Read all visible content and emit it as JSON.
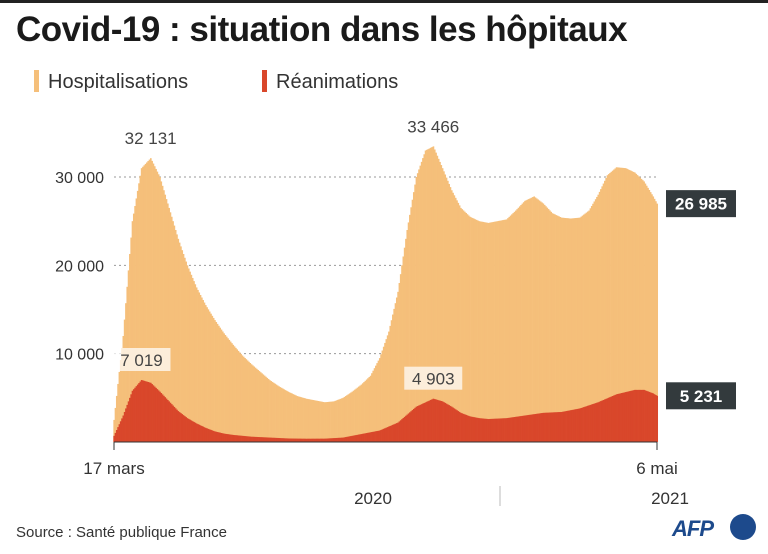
{
  "title": "Covid-19 : situation dans les hôpitaux",
  "legend": [
    {
      "label": "Hospitalisations",
      "color": "#f5bf7a"
    },
    {
      "label": "Réanimations",
      "color": "#d9472b"
    }
  ],
  "source": "Source : Santé publique France",
  "logo": "AFP",
  "chart_data": {
    "type": "bar",
    "x_start": "2020-03-17",
    "x_end": "2021-05-06",
    "ylim": [
      0,
      36000
    ],
    "yticks": [
      {
        "value": 10000,
        "label": "10 000"
      },
      {
        "value": 20000,
        "label": "20 000"
      },
      {
        "value": 30000,
        "label": "30 000"
      }
    ],
    "grid": "dotted horizontal",
    "x_labels": {
      "start": "17 mars",
      "end": "6 mai",
      "year1": "2020",
      "year2": "2021"
    },
    "series": [
      {
        "name": "Hospitalisations",
        "color": "#f5bf7a",
        "points": [
          [
            "2020-03-17",
            2500
          ],
          [
            "2020-03-24",
            12000
          ],
          [
            "2020-03-31",
            25000
          ],
          [
            "2020-04-07",
            31000
          ],
          [
            "2020-04-14",
            32131
          ],
          [
            "2020-04-21",
            30000
          ],
          [
            "2020-04-28",
            26500
          ],
          [
            "2020-05-05",
            23000
          ],
          [
            "2020-05-12",
            20000
          ],
          [
            "2020-05-19",
            17500
          ],
          [
            "2020-05-26",
            15500
          ],
          [
            "2020-06-02",
            13800
          ],
          [
            "2020-06-09",
            12300
          ],
          [
            "2020-06-16",
            11000
          ],
          [
            "2020-06-23",
            9800
          ],
          [
            "2020-06-30",
            8800
          ],
          [
            "2020-07-07",
            7900
          ],
          [
            "2020-07-14",
            7000
          ],
          [
            "2020-07-21",
            6300
          ],
          [
            "2020-07-28",
            5700
          ],
          [
            "2020-08-04",
            5200
          ],
          [
            "2020-08-11",
            4900
          ],
          [
            "2020-08-18",
            4700
          ],
          [
            "2020-08-25",
            4500
          ],
          [
            "2020-09-01",
            4600
          ],
          [
            "2020-09-08",
            5000
          ],
          [
            "2020-09-15",
            5700
          ],
          [
            "2020-09-22",
            6500
          ],
          [
            "2020-09-29",
            7500
          ],
          [
            "2020-10-06",
            9500
          ],
          [
            "2020-10-13",
            12500
          ],
          [
            "2020-10-20",
            17000
          ],
          [
            "2020-10-27",
            24000
          ],
          [
            "2020-11-03",
            30000
          ],
          [
            "2020-11-10",
            33000
          ],
          [
            "2020-11-16",
            33466
          ],
          [
            "2020-11-23",
            31000
          ],
          [
            "2020-11-30",
            28500
          ],
          [
            "2020-12-07",
            26500
          ],
          [
            "2020-12-14",
            25500
          ],
          [
            "2020-12-21",
            25000
          ],
          [
            "2020-12-28",
            24800
          ],
          [
            "2021-01-04",
            25000
          ],
          [
            "2021-01-11",
            25200
          ],
          [
            "2021-01-18",
            26200
          ],
          [
            "2021-01-25",
            27300
          ],
          [
            "2021-02-01",
            27800
          ],
          [
            "2021-02-08",
            27000
          ],
          [
            "2021-02-15",
            25900
          ],
          [
            "2021-02-22",
            25400
          ],
          [
            "2021-03-01",
            25300
          ],
          [
            "2021-03-08",
            25400
          ],
          [
            "2021-03-15",
            26200
          ],
          [
            "2021-03-22",
            28000
          ],
          [
            "2021-03-29",
            30200
          ],
          [
            "2021-04-05",
            31100
          ],
          [
            "2021-04-12",
            31000
          ],
          [
            "2021-04-19",
            30500
          ],
          [
            "2021-04-26",
            29500
          ],
          [
            "2021-05-03",
            27800
          ],
          [
            "2021-05-06",
            26985
          ]
        ]
      },
      {
        "name": "Réanimations",
        "color": "#d9472b",
        "points": [
          [
            "2020-03-17",
            700
          ],
          [
            "2020-03-24",
            3000
          ],
          [
            "2020-03-31",
            5800
          ],
          [
            "2020-04-07",
            7019
          ],
          [
            "2020-04-14",
            6700
          ],
          [
            "2020-04-21",
            5700
          ],
          [
            "2020-04-28",
            4600
          ],
          [
            "2020-05-05",
            3500
          ],
          [
            "2020-05-12",
            2700
          ],
          [
            "2020-05-19",
            2100
          ],
          [
            "2020-05-26",
            1600
          ],
          [
            "2020-06-02",
            1200
          ],
          [
            "2020-06-09",
            950
          ],
          [
            "2020-06-16",
            800
          ],
          [
            "2020-06-23",
            700
          ],
          [
            "2020-06-30",
            600
          ],
          [
            "2020-07-14",
            500
          ],
          [
            "2020-07-28",
            400
          ],
          [
            "2020-08-11",
            370
          ],
          [
            "2020-08-25",
            380
          ],
          [
            "2020-09-08",
            500
          ],
          [
            "2020-09-22",
            900
          ],
          [
            "2020-10-06",
            1300
          ],
          [
            "2020-10-20",
            2200
          ],
          [
            "2020-11-03",
            4000
          ],
          [
            "2020-11-16",
            4903
          ],
          [
            "2020-11-23",
            4600
          ],
          [
            "2020-11-30",
            4000
          ],
          [
            "2020-12-07",
            3300
          ],
          [
            "2020-12-14",
            2900
          ],
          [
            "2020-12-21",
            2700
          ],
          [
            "2020-12-28",
            2600
          ],
          [
            "2021-01-11",
            2700
          ],
          [
            "2021-01-25",
            3000
          ],
          [
            "2021-02-08",
            3300
          ],
          [
            "2021-02-22",
            3400
          ],
          [
            "2021-03-08",
            3800
          ],
          [
            "2021-03-22",
            4500
          ],
          [
            "2021-04-05",
            5400
          ],
          [
            "2021-04-19",
            5900
          ],
          [
            "2021-04-26",
            5900
          ],
          [
            "2021-05-03",
            5500
          ],
          [
            "2021-05-06",
            5231
          ]
        ]
      }
    ],
    "annotations": [
      {
        "series": "Hospitalisations",
        "date": "2020-04-14",
        "label": "32 131"
      },
      {
        "series": "Hospitalisations",
        "date": "2020-11-16",
        "label": "33 466"
      },
      {
        "series": "Réanimations",
        "date": "2020-04-07",
        "label": "7 019"
      },
      {
        "series": "Réanimations",
        "date": "2020-11-16",
        "label": "4 903"
      }
    ],
    "end_values": [
      {
        "series": "Hospitalisations",
        "label": "26 985"
      },
      {
        "series": "Réanimations",
        "label": "5 231"
      }
    ]
  }
}
